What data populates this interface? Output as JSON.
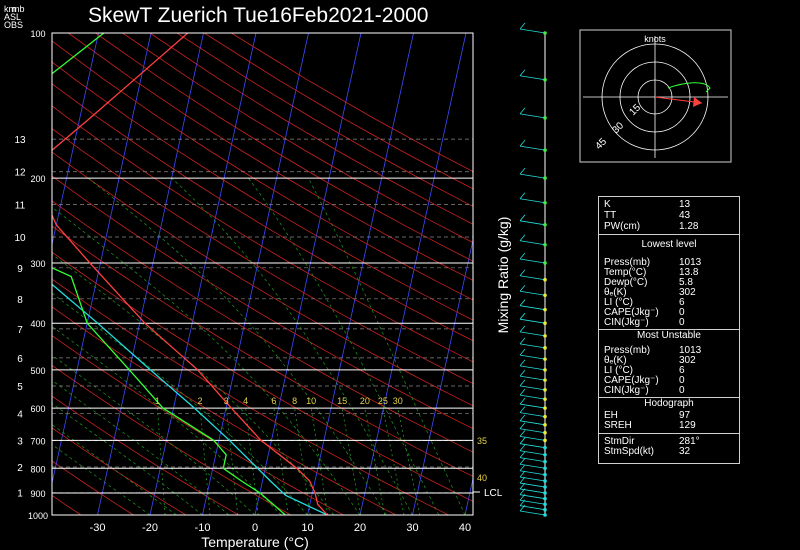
{
  "title": "SkewT Zuerich Tue16Feb2021-2000",
  "corner_labels": [
    "km",
    "mb",
    "ASL",
    "OBS"
  ],
  "chart_data": {
    "type": "skewt",
    "xlabel": "Temperature (°C)",
    "right_label": "Mixing Ratio (g/kg)",
    "x_ticks": [
      "-30",
      "-20",
      "-10",
      "0",
      "10",
      "20",
      "30",
      "40"
    ],
    "pressure_ticks": [
      "100",
      "200",
      "300",
      "400",
      "500",
      "600",
      "700",
      "800",
      "900",
      "1000"
    ],
    "km_ticks": [
      "1",
      "2",
      "3",
      "4",
      "5",
      "6",
      "7",
      "8",
      "9",
      "10",
      "11",
      "12",
      "13"
    ],
    "mixing_ratio_labels": [
      "1",
      "2",
      "3",
      "4",
      "6",
      "8",
      "10",
      "15",
      "20",
      "25",
      "30"
    ],
    "side_labels": [
      "35",
      "40"
    ],
    "lcl_label": "LCL",
    "temperature": [
      {
        "p": 1000,
        "t": 13.8
      },
      {
        "p": 950,
        "t": 11.5
      },
      {
        "p": 900,
        "t": 10.5
      },
      {
        "p": 850,
        "t": 9.0
      },
      {
        "p": 800,
        "t": 6.0
      },
      {
        "p": 700,
        "t": -2.0
      },
      {
        "p": 600,
        "t": -9.0
      },
      {
        "p": 500,
        "t": -17.0
      },
      {
        "p": 400,
        "t": -29.0
      },
      {
        "p": 300,
        "t": -42.0
      },
      {
        "p": 250,
        "t": -50.0
      },
      {
        "p": 200,
        "t": -56.0
      },
      {
        "p": 180,
        "t": -55.0
      },
      {
        "p": 150,
        "t": -48.0
      },
      {
        "p": 100,
        "t": -33.0
      }
    ],
    "dewpoint": [
      {
        "p": 1000,
        "t": 5.8
      },
      {
        "p": 950,
        "t": 3.0
      },
      {
        "p": 900,
        "t": 0.0
      },
      {
        "p": 850,
        "t": -4.0
      },
      {
        "p": 800,
        "t": -8.0
      },
      {
        "p": 750,
        "t": -8.0
      },
      {
        "p": 700,
        "t": -11.0
      },
      {
        "p": 600,
        "t": -22.0
      },
      {
        "p": 500,
        "t": -30.0
      },
      {
        "p": 400,
        "t": -40.0
      },
      {
        "p": 320,
        "t": -45.0
      },
      {
        "p": 280,
        "t": -58.0
      },
      {
        "p": 250,
        "t": -70.0
      },
      {
        "p": 200,
        "t": -72.0
      },
      {
        "p": 150,
        "t": -66.0
      },
      {
        "p": 100,
        "t": -49.0
      }
    ],
    "parcel": [
      {
        "p": 1000,
        "t": 13.8
      },
      {
        "p": 910,
        "t": 5.0
      },
      {
        "p": 850,
        "t": 1.5
      },
      {
        "p": 700,
        "t": -8.0
      },
      {
        "p": 600,
        "t": -16.0
      },
      {
        "p": 500,
        "t": -26.0
      },
      {
        "p": 400,
        "t": -38.0
      },
      {
        "p": 300,
        "t": -54.0
      },
      {
        "p": 200,
        "t": -75.0
      },
      {
        "p": 150,
        "t": -88.0
      }
    ]
  },
  "hodograph": {
    "title": "knots",
    "ring_labels": [
      "15",
      "30",
      "45"
    ],
    "storm_motion": {
      "dir_deg": 281,
      "speed_kt": 32
    }
  },
  "indices": {
    "top": [
      {
        "k": "K",
        "v": "13"
      },
      {
        "k": "TT",
        "v": "43"
      },
      {
        "k": "PW(cm)",
        "v": "1.28"
      }
    ],
    "lowest_header": "Lowest level",
    "lowest": [
      {
        "k": "Press(mb)",
        "v": "1013"
      },
      {
        "k": "Temp(°C)",
        "v": "13.8"
      },
      {
        "k": "Dewp(°C)",
        "v": "5.8"
      },
      {
        "k": "θₑ(K)",
        "v": "302"
      },
      {
        "k": "LI (°C)",
        "v": "6"
      },
      {
        "k": "CAPE(Jkg⁻)",
        "v": "0"
      },
      {
        "k": "CIN(Jkg⁻)",
        "v": "0"
      }
    ],
    "unstable_header": "Most Unstable",
    "unstable": [
      {
        "k": "Press(mb)",
        "v": "1013"
      },
      {
        "k": "θₑ(K)",
        "v": "302"
      },
      {
        "k": "LI (°C)",
        "v": "6"
      },
      {
        "k": "CAPE(Jkg⁻)",
        "v": "0"
      },
      {
        "k": "CIN(Jkg⁻)",
        "v": "0"
      }
    ],
    "hodo_header": "Hodograph",
    "hodo": [
      {
        "k": "EH",
        "v": "97"
      },
      {
        "k": "SREH",
        "v": "129"
      }
    ],
    "storm": [
      {
        "k": "StmDir",
        "v": "281°"
      },
      {
        "k": "StmSpd(kt)",
        "v": "32"
      }
    ]
  },
  "colors": {
    "temperature": "#ff4040",
    "dewpoint": "#33ff33",
    "parcel": "#22dddd",
    "isotherm": "#3b4bff",
    "dry_adiabat": "#cc2222",
    "mixing_ratio": "#1f9a1f",
    "label_yellow": "#e6d24a"
  }
}
